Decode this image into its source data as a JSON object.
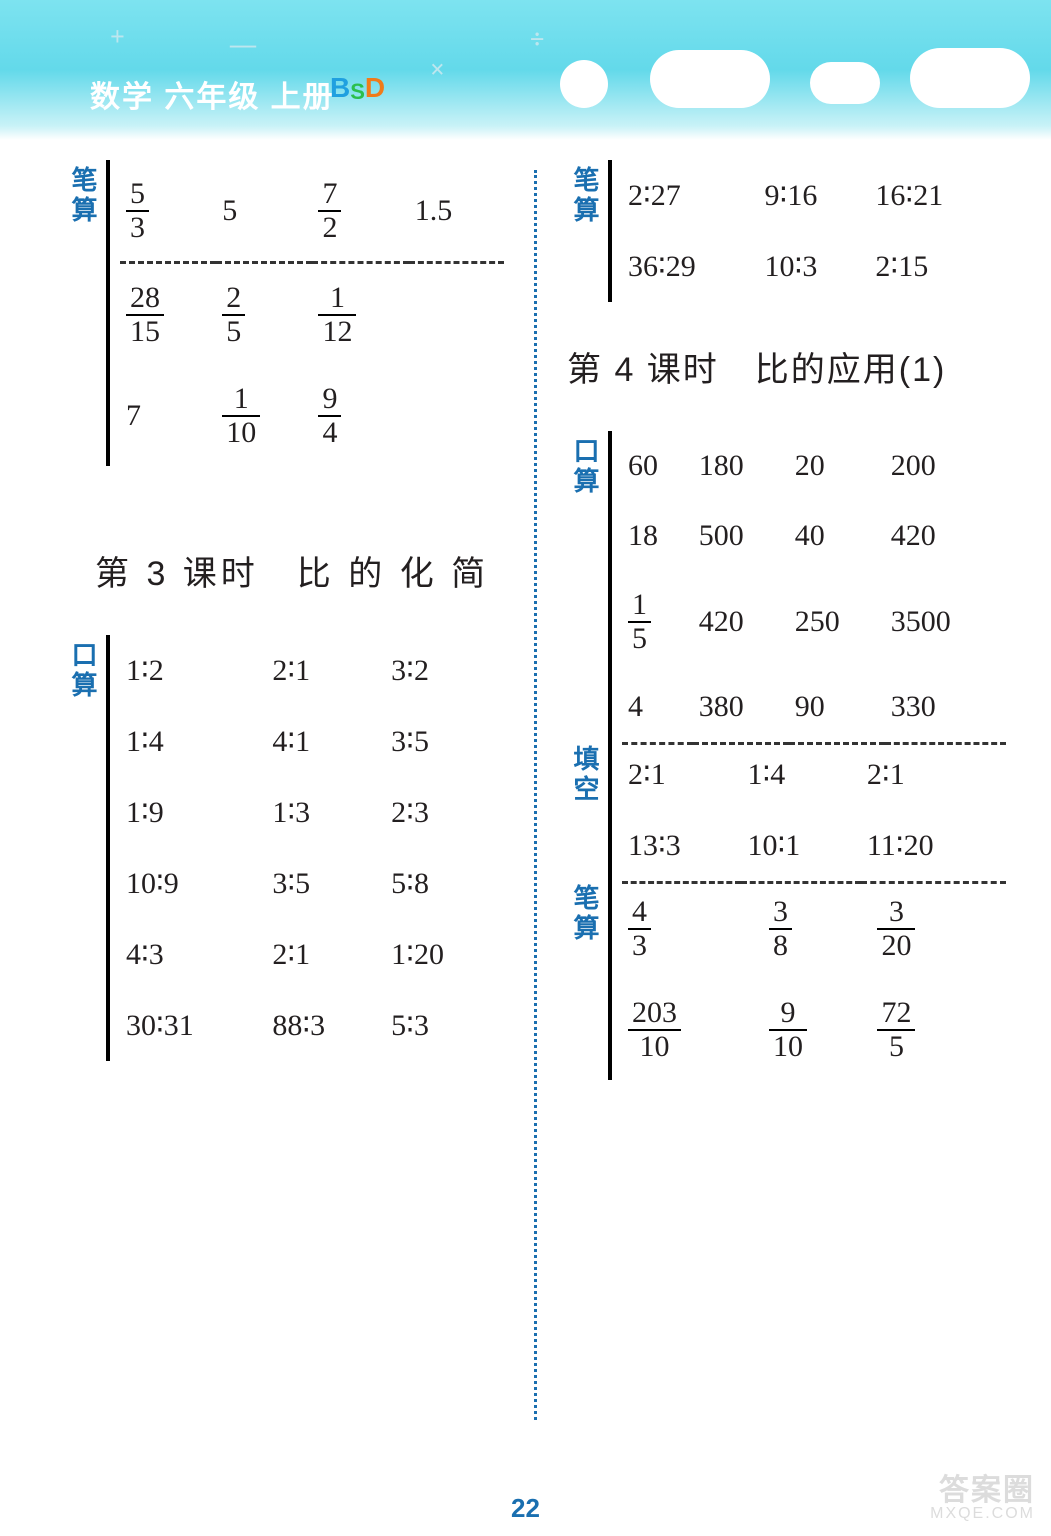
{
  "colors": {
    "accent": "#1a6fb0",
    "text": "#231f20",
    "banner_from": "#7de3f0",
    "banner_to": "#c9f2f7"
  },
  "banner": {
    "title": "数学 六年级 上册",
    "badge_B": "B",
    "badge_S": "S",
    "badge_D": "D"
  },
  "pageNumber": "22",
  "watermark": {
    "line1": "答案圈",
    "line2": "MXQE.COM"
  },
  "labels": {
    "bisuan": "笔算",
    "kousuan": "口算",
    "tiankong": "填空"
  },
  "left": {
    "bisuan": {
      "rows": [
        [
          {
            "frac": [
              "5",
              "3"
            ]
          },
          {
            "text": "5"
          },
          {
            "frac": [
              "7",
              "2"
            ]
          },
          {
            "text": "1.5"
          }
        ],
        [
          {
            "frac": [
              "28",
              "15"
            ]
          },
          {
            "frac": [
              "2",
              "5"
            ]
          },
          {
            "frac": [
              "1",
              "12"
            ]
          },
          {
            "text": ""
          }
        ],
        [
          {
            "text": "7"
          },
          {
            "frac": [
              "1",
              "10"
            ]
          },
          {
            "frac": [
              "9",
              "4"
            ]
          },
          {
            "text": ""
          }
        ]
      ],
      "dashedAfterRow": 0
    },
    "heading": "第 3 课时　比 的 化 简",
    "kousuan": {
      "rows": [
        [
          {
            "text": "1∶2"
          },
          {
            "text": "2∶1"
          },
          {
            "text": "3∶2"
          }
        ],
        [
          {
            "text": "1∶4"
          },
          {
            "text": "4∶1"
          },
          {
            "text": "3∶5"
          }
        ],
        [
          {
            "text": "1∶9"
          },
          {
            "text": "1∶3"
          },
          {
            "text": "2∶3"
          }
        ],
        [
          {
            "text": "10∶9"
          },
          {
            "text": "3∶5"
          },
          {
            "text": "5∶8"
          }
        ],
        [
          {
            "text": "4∶3"
          },
          {
            "text": "2∶1"
          },
          {
            "text": "1∶20"
          }
        ],
        [
          {
            "text": "30∶31"
          },
          {
            "text": "88∶3"
          },
          {
            "text": "5∶3"
          }
        ]
      ]
    }
  },
  "right": {
    "bisuan": {
      "rows": [
        [
          {
            "text": "2∶27"
          },
          {
            "text": "9∶16"
          },
          {
            "text": "16∶21"
          }
        ],
        [
          {
            "text": "36∶29"
          },
          {
            "text": "10∶3"
          },
          {
            "text": "2∶15"
          }
        ]
      ]
    },
    "heading": "第 4 课时　比的应用(1)",
    "kousuan": {
      "rows": [
        [
          {
            "text": "60"
          },
          {
            "text": "180"
          },
          {
            "text": "20"
          },
          {
            "text": "200"
          }
        ],
        [
          {
            "text": "18"
          },
          {
            "text": "500"
          },
          {
            "text": "40"
          },
          {
            "text": "420"
          }
        ],
        [
          {
            "frac": [
              "1",
              "5"
            ]
          },
          {
            "text": "420"
          },
          {
            "text": "250"
          },
          {
            "text": "3500"
          }
        ],
        [
          {
            "text": "4"
          },
          {
            "text": "380"
          },
          {
            "text": "90"
          },
          {
            "text": "330"
          }
        ]
      ],
      "dashedAfterRow": 3
    },
    "tiankong": {
      "rows": [
        [
          {
            "text": "2∶1"
          },
          {
            "text": "1∶4"
          },
          {
            "text": "2∶1"
          }
        ],
        [
          {
            "text": "13∶3"
          },
          {
            "text": "10∶1"
          },
          {
            "text": "11∶20"
          }
        ]
      ],
      "dashedAfterRow": 1
    },
    "bisuan2": {
      "rows": [
        [
          {
            "frac": [
              "4",
              "3"
            ]
          },
          {
            "frac": [
              "3",
              "8"
            ]
          },
          {
            "frac": [
              "3",
              "20"
            ]
          },
          {
            "text": ""
          }
        ],
        [
          {
            "frac": [
              "203",
              "10"
            ]
          },
          {
            "frac": [
              "9",
              "10"
            ]
          },
          {
            "frac": [
              "72",
              "5"
            ]
          },
          {
            "text": ""
          }
        ]
      ]
    }
  }
}
